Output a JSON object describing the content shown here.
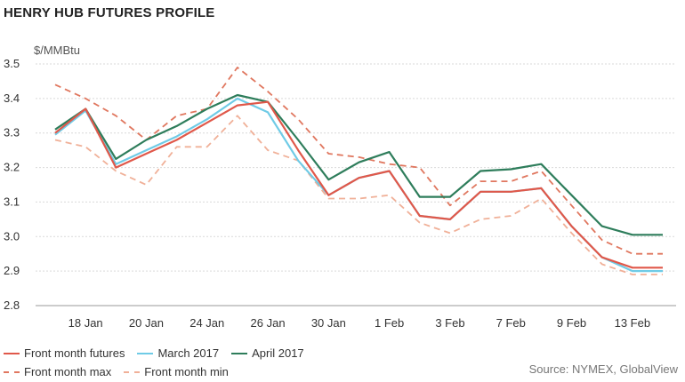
{
  "title": "HENRY HUB FUTURES PROFILE",
  "source": "Source: NYMEX, GlobalView",
  "chart_data": {
    "type": "line",
    "ylabel": "$/MMBtu",
    "ylim": [
      2.8,
      3.5
    ],
    "yticks": [
      "2.8",
      "2.9",
      "3.0",
      "3.1",
      "3.2",
      "3.3",
      "3.4",
      "3.5"
    ],
    "x_tick_labels": [
      "18 Jan",
      "20 Jan",
      "24 Jan",
      "26 Jan",
      "30 Jan",
      "1 Feb",
      "3 Feb",
      "7 Feb",
      "9 Feb",
      "13 Feb"
    ],
    "x": [
      "17 Jan",
      "18 Jan",
      "19 Jan",
      "20 Jan",
      "23 Jan",
      "24 Jan",
      "25 Jan",
      "26 Jan",
      "27 Jan",
      "30 Jan",
      "31 Jan",
      "1 Feb",
      "2 Feb",
      "3 Feb",
      "6 Feb",
      "7 Feb",
      "8 Feb",
      "9 Feb",
      "10 Feb",
      "13 Feb",
      "14 Feb"
    ],
    "grid": true,
    "legend_position": "bottom-left",
    "series": [
      {
        "name": "Front month futures",
        "color": "#e0584a",
        "dash": "solid",
        "values": [
          3.3,
          3.37,
          3.2,
          3.24,
          3.28,
          3.33,
          3.38,
          3.39,
          3.25,
          3.12,
          3.17,
          3.19,
          3.06,
          3.05,
          3.13,
          3.13,
          3.14,
          3.03,
          2.94,
          2.91,
          2.91
        ]
      },
      {
        "name": "March 2017",
        "color": "#6fcbe6",
        "dash": "solid",
        "values": [
          3.295,
          3.365,
          3.21,
          3.25,
          3.29,
          3.34,
          3.4,
          3.36,
          3.22,
          3.12,
          3.17,
          3.19,
          3.06,
          3.05,
          3.13,
          3.13,
          3.14,
          3.03,
          2.94,
          2.9,
          2.9
        ]
      },
      {
        "name": "April 2017",
        "color": "#2e7d5b",
        "dash": "solid",
        "values": [
          3.31,
          3.37,
          3.225,
          3.28,
          3.32,
          3.37,
          3.41,
          3.39,
          3.28,
          3.165,
          3.215,
          3.245,
          3.115,
          3.115,
          3.19,
          3.195,
          3.21,
          3.12,
          3.03,
          3.005,
          3.005
        ]
      },
      {
        "name": "Front month max",
        "color": "#e0775f",
        "dash": "dashed",
        "values": [
          3.44,
          3.4,
          3.35,
          3.28,
          3.35,
          3.37,
          3.49,
          3.42,
          3.34,
          3.24,
          3.23,
          3.21,
          3.2,
          3.09,
          3.16,
          3.16,
          3.19,
          3.09,
          2.99,
          2.95,
          2.95
        ]
      },
      {
        "name": "Front month min",
        "color": "#f0b098",
        "dash": "dashed",
        "values": [
          3.28,
          3.26,
          3.19,
          3.15,
          3.26,
          3.26,
          3.35,
          3.25,
          3.22,
          3.11,
          3.11,
          3.12,
          3.04,
          3.01,
          3.05,
          3.06,
          3.11,
          3.01,
          2.92,
          2.89,
          2.89
        ]
      }
    ]
  }
}
